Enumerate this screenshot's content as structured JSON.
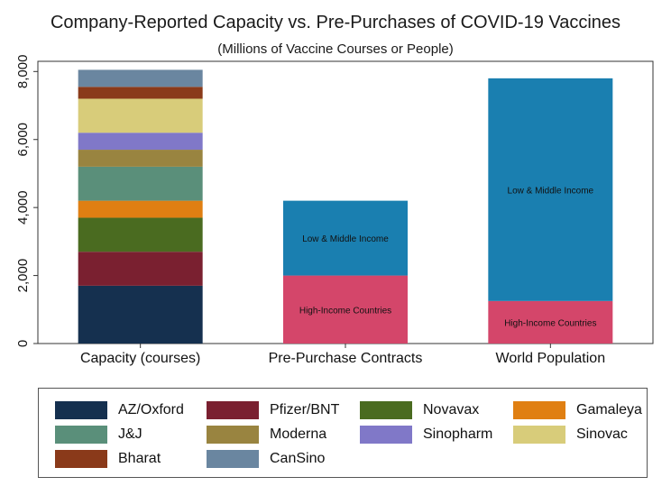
{
  "chart_data": {
    "type": "bar",
    "stacked": true,
    "title": "Company-Reported Capacity vs. Pre-Purchases of COVID-19 Vaccines",
    "subtitle": "(Millions of Vaccine Courses or People)",
    "xlabel": "",
    "ylabel": "",
    "ylim": [
      0,
      8300
    ],
    "yticks": [
      0,
      2000,
      4000,
      6000,
      8000
    ],
    "ytick_labels": [
      "0",
      "2,000",
      "4,000",
      "6,000",
      "8,000"
    ],
    "categories": [
      "Capacity (courses)",
      "Pre-Purchase Contracts",
      "World Population"
    ],
    "series": [
      {
        "name": "AZ/Oxford",
        "color": "#15304f",
        "values": [
          1700,
          null,
          null
        ]
      },
      {
        "name": "Pfizer/BNT",
        "color": "#7a2030",
        "values": [
          1000,
          null,
          null
        ]
      },
      {
        "name": "Novavax",
        "color": "#4a6b20",
        "values": [
          1000,
          null,
          null
        ]
      },
      {
        "name": "Gamaleya",
        "color": "#e07f12",
        "values": [
          500,
          null,
          null
        ]
      },
      {
        "name": "J&J",
        "color": "#5a8f7a",
        "values": [
          1000,
          null,
          null
        ]
      },
      {
        "name": "Moderna",
        "color": "#998440",
        "values": [
          500,
          null,
          null
        ]
      },
      {
        "name": "Sinopharm",
        "color": "#8078c8",
        "values": [
          500,
          null,
          null
        ]
      },
      {
        "name": "Sinovac",
        "color": "#d8cc7a",
        "values": [
          1000,
          null,
          null
        ]
      },
      {
        "name": "Bharat",
        "color": "#8a3a1a",
        "values": [
          350,
          null,
          null
        ]
      },
      {
        "name": "CanSino",
        "color": "#6a86a0",
        "values": [
          500,
          null,
          null
        ]
      },
      {
        "name": "High-Income Countries",
        "color": "#d4466a",
        "values": [
          null,
          2000,
          1250
        ]
      },
      {
        "name": "Low & Middle Income",
        "color": "#1a7fb0",
        "values": [
          null,
          2200,
          6550
        ]
      }
    ],
    "bar_labels": [
      {
        "category": 1,
        "series": "High-Income Countries",
        "text": "High-Income Countries"
      },
      {
        "category": 1,
        "series": "Low & Middle Income",
        "text": "Low & Middle Income"
      },
      {
        "category": 2,
        "series": "High-Income Countries",
        "text": "High-Income Countries"
      },
      {
        "category": 2,
        "series": "Low & Middle Income",
        "text": "Low & Middle Income"
      }
    ],
    "legend": {
      "position": "bottom",
      "columns": 4,
      "entries": [
        "AZ/Oxford",
        "Pfizer/BNT",
        "Novavax",
        "Gamaleya",
        "J&J",
        "Moderna",
        "Sinopharm",
        "Sinovac",
        "Bharat",
        "CanSino"
      ]
    }
  }
}
